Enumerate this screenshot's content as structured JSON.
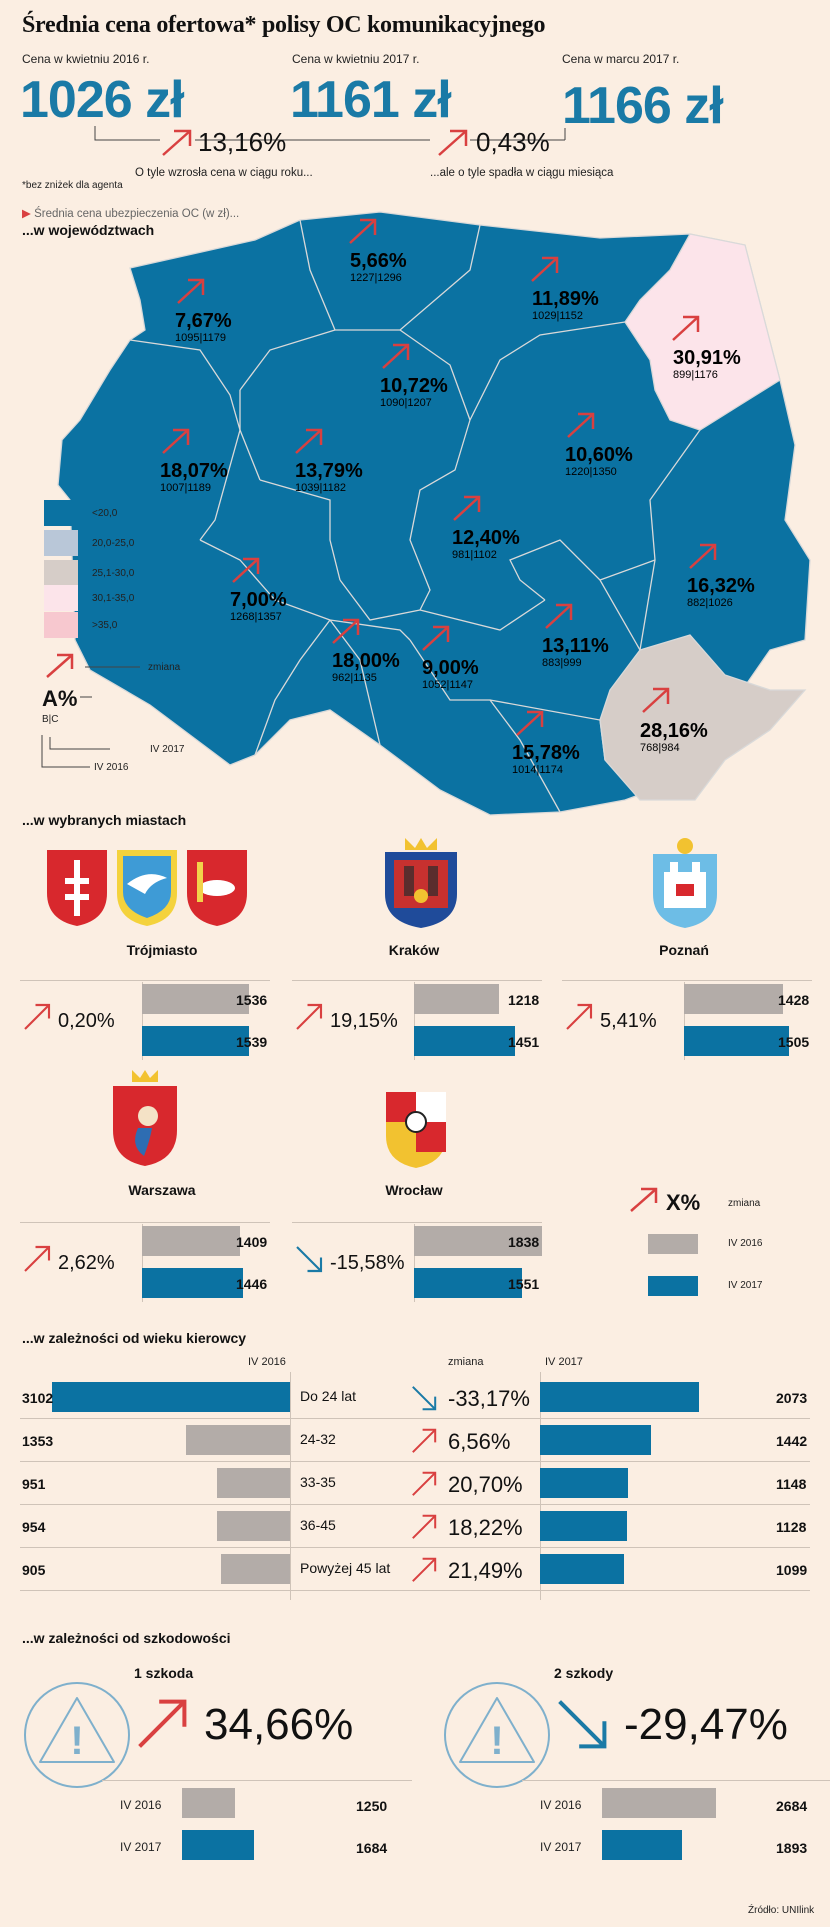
{
  "title": "Średnia cena ofertowa* polisy OC komunikacyjnego",
  "header": {
    "price_2016_label": "Cena w kwietniu 2016 r.",
    "price_2016": "1026 zł",
    "price_2017_label": "Cena w kwietniu 2017 r.",
    "price_2017": "1161 zł",
    "price_mar_label": "Cena w marcu 2017 r.",
    "price_mar": "1166 zł",
    "change_year": "13,16%",
    "change_year_note": "O tyle wzrosła cena w ciągu roku...",
    "change_month": "0,43%",
    "change_month_note": "...ale o tyle spadła w ciągu miesiąca",
    "footnote": "*bez zniżek dla agenta",
    "avg_note": "Średnia cena ubezpieczenia OC (w zł)..."
  },
  "sections": {
    "regions": "...w województwach",
    "cities": "...w wybranych miastach",
    "age": "...w zależności od wieku kierowcy",
    "claims": "...w zależności od szkodowości"
  },
  "colors": {
    "blue": "#0b72a2",
    "grey": "#b3aca8",
    "red": "#d94040",
    "light_pink": "#fce4ea",
    "beige": "#d6cdc8"
  },
  "map_legend": {
    "items": [
      {
        "label": "<20,0",
        "color": "#0b72a2"
      },
      {
        "label": "20,0-25,0",
        "color": "#b9c7d8"
      },
      {
        "label": "25,1-30,0",
        "color": "#d6cdc8"
      },
      {
        "label": "30,1-35,0",
        "color": "#fce4ea"
      },
      {
        "label": ">35,0",
        "color": "#f7c8cf"
      }
    ],
    "change_label": "zmiana",
    "key_pct": "A%",
    "key_bc": "B|C",
    "key_iv2017": "IV 2017",
    "key_iv2016": "IV 2016"
  },
  "chart_data": [
    {
      "type": "table",
      "name": "województwa",
      "regions": [
        {
          "pct": "5,66%",
          "bc": "1227|1296"
        },
        {
          "pct": "11,89%",
          "bc": "1029|1152"
        },
        {
          "pct": "30,91%",
          "bc": "899|1176"
        },
        {
          "pct": "7,67%",
          "bc": "1095|1179"
        },
        {
          "pct": "10,72%",
          "bc": "1090|1207"
        },
        {
          "pct": "10,60%",
          "bc": "1220|1350"
        },
        {
          "pct": "18,07%",
          "bc": "1007|1189"
        },
        {
          "pct": "13,79%",
          "bc": "1039|1182"
        },
        {
          "pct": "12,40%",
          "bc": "981|1102"
        },
        {
          "pct": "16,32%",
          "bc": "882|1026"
        },
        {
          "pct": "7,00%",
          "bc": "1268|1357"
        },
        {
          "pct": "18,00%",
          "bc": "962|1135"
        },
        {
          "pct": "9,00%",
          "bc": "1052|1147"
        },
        {
          "pct": "13,11%",
          "bc": "883|999"
        },
        {
          "pct": "28,16%",
          "bc": "768|984"
        },
        {
          "pct": "15,78%",
          "bc": "1014|1174"
        }
      ]
    },
    {
      "type": "bar",
      "name": "miasta",
      "categories": [
        "Trójmiasto",
        "Kraków",
        "Poznań",
        "Warszawa",
        "Wrocław"
      ],
      "changes": [
        "0,20%",
        "19,15%",
        "5,41%",
        "2,62%",
        "-15,58%"
      ],
      "directions": [
        "up",
        "up",
        "up",
        "up",
        "down"
      ],
      "series": [
        {
          "name": "IV 2016",
          "values": [
            1536,
            1218,
            1428,
            1409,
            1838
          ]
        },
        {
          "name": "IV 2017",
          "values": [
            1539,
            1451,
            1505,
            1446,
            1551
          ]
        }
      ],
      "legend": {
        "pct": "X%",
        "change": "zmiana",
        "iv2016": "IV 2016",
        "iv2017": "IV 2017"
      },
      "xlim": [
        0,
        1838
      ]
    },
    {
      "type": "bar",
      "name": "wiek",
      "col_2016": "IV 2016",
      "col_change": "zmiana",
      "col_2017": "IV 2017",
      "categories": [
        "Do 24 lat",
        "24-32",
        "33-35",
        "36-45",
        "Powyżej 45 lat"
      ],
      "changes": [
        "-33,17%",
        "6,56%",
        "20,70%",
        "18,22%",
        "21,49%"
      ],
      "directions": [
        "down",
        "up",
        "up",
        "up",
        "up"
      ],
      "series": [
        {
          "name": "IV 2016",
          "values": [
            3102,
            1353,
            951,
            954,
            905
          ]
        },
        {
          "name": "IV 2017",
          "values": [
            2073,
            1442,
            1148,
            1128,
            1099
          ]
        }
      ],
      "xlim": [
        0,
        3102
      ]
    },
    {
      "type": "bar",
      "name": "szkodowość",
      "groups": [
        {
          "title": "1 szkoda",
          "change": "34,66%",
          "direction": "up",
          "iv2016": 1250,
          "iv2017": 1684
        },
        {
          "title": "2 szkody",
          "change": "-29,47%",
          "direction": "down",
          "iv2016": 2684,
          "iv2017": 1893
        }
      ],
      "row_labels": [
        "IV 2016",
        "IV 2017"
      ],
      "xlim": [
        0,
        2684
      ]
    }
  ],
  "source": "Źródło: UNIlink"
}
